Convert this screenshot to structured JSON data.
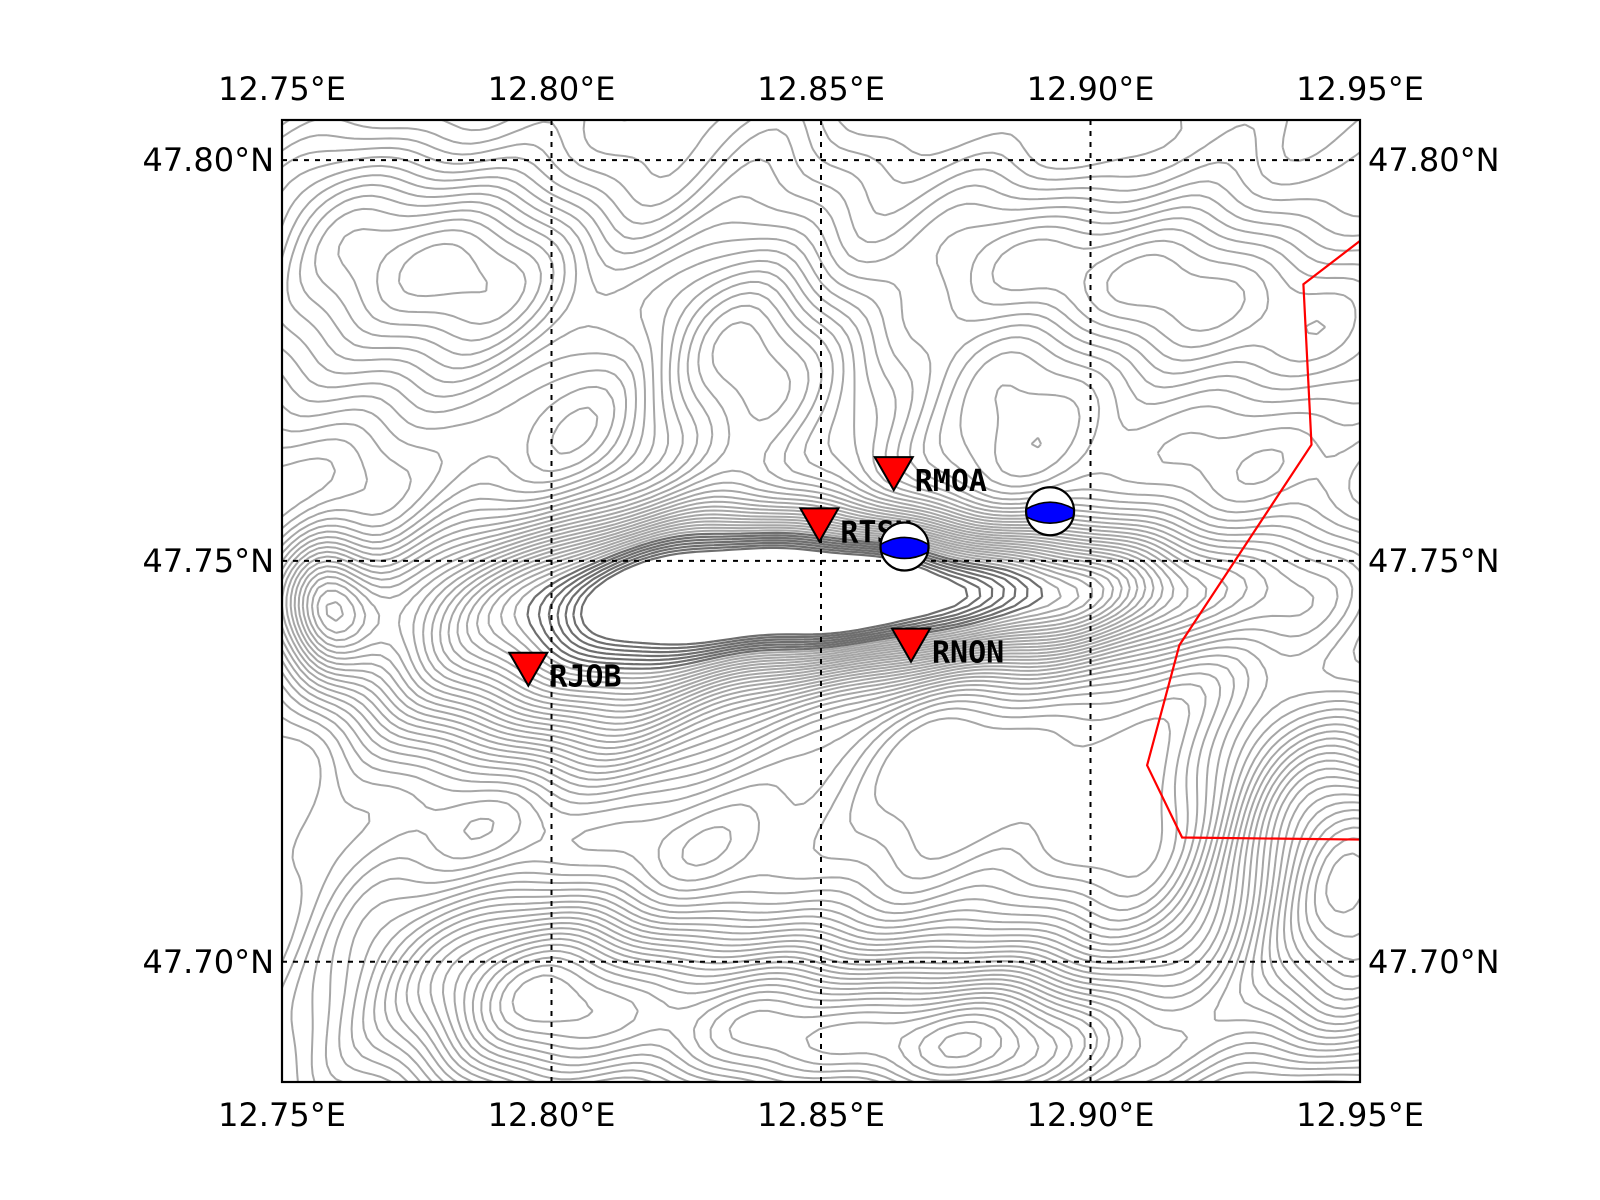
{
  "map": {
    "lon_range": [
      12.75,
      12.95
    ],
    "lat_range": [
      47.685,
      47.805
    ],
    "lon_ticks": [
      {
        "value": 12.75,
        "label": "12.75°E"
      },
      {
        "value": 12.8,
        "label": "12.80°E"
      },
      {
        "value": 12.85,
        "label": "12.85°E"
      },
      {
        "value": 12.9,
        "label": "12.90°E"
      },
      {
        "value": 12.95,
        "label": "12.95°E"
      }
    ],
    "lat_ticks": [
      {
        "value": 47.8,
        "label": "47.80°N"
      },
      {
        "value": 47.75,
        "label": "47.75°N"
      },
      {
        "value": 47.7,
        "label": "47.70°N"
      }
    ],
    "grid": true,
    "contour_color": "#a6a6a6",
    "border_color": "#ff0000",
    "station_color": "#ff0000",
    "beachball_color": "#0000ff",
    "stations": [
      {
        "name": "RMOA",
        "lon": 12.8635,
        "lat": 47.7612,
        "label": "RMOA"
      },
      {
        "name": "RTSH",
        "lon": 12.8497,
        "lat": 47.7548,
        "label": "RTSH"
      },
      {
        "name": "RNON",
        "lon": 12.8667,
        "lat": 47.7398,
        "label": "RNON"
      },
      {
        "name": "RJOB",
        "lon": 12.7957,
        "lat": 47.7368,
        "label": "RJOB"
      }
    ],
    "events": [
      {
        "name": "event-1",
        "lon": 12.8655,
        "lat": 47.7518
      },
      {
        "name": "event-2",
        "lon": 12.8925,
        "lat": 47.7562
      }
    ],
    "border": [
      [
        12.955,
        47.7925
      ],
      [
        12.9395,
        47.7845
      ],
      [
        12.941,
        47.7645
      ],
      [
        12.9165,
        47.7395
      ],
      [
        12.9105,
        47.7245
      ],
      [
        12.917,
        47.7155
      ],
      [
        12.955,
        47.7152
      ]
    ]
  }
}
